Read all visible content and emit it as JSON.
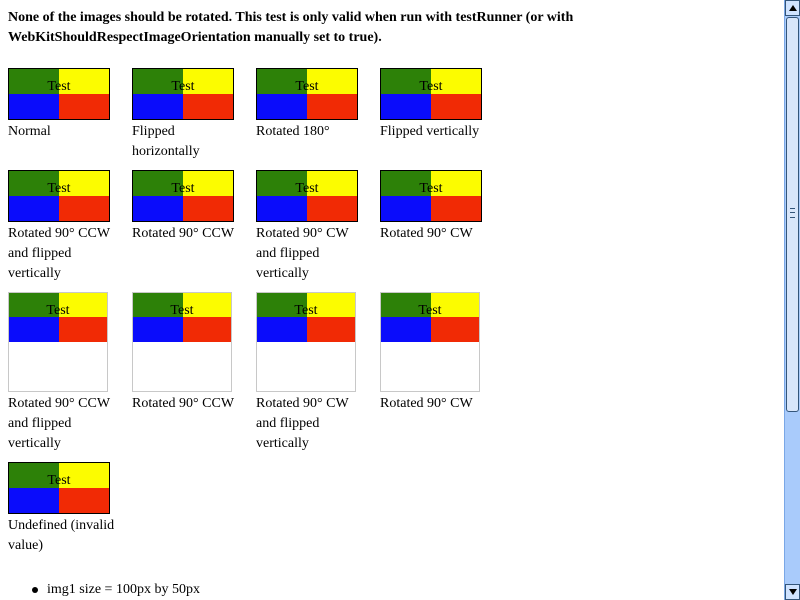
{
  "heading": "None of the images should be rotated. This test is only valid when run with testRunner (or with WebKitShouldRespectImageOrientation manually set to true).",
  "image_text": "Test",
  "colors": {
    "green": "#2d8108",
    "yellow": "#fcfc00",
    "blue": "#0a0cfb",
    "red": "#f12a05",
    "scrollbar_track": "#a9cbfb"
  },
  "rows": [
    {
      "captions": [
        "Normal",
        "Flipped horizontally",
        "Rotated 180°",
        "Flipped vertically"
      ]
    },
    {
      "captions": [
        "Rotated 90° CCW and flipped vertically",
        "Rotated 90° CCW",
        "Rotated 90° CW and flipped vertically",
        "Rotated 90° CW"
      ]
    },
    {
      "captions": [
        "Rotated 90° CCW and flipped vertically",
        "Rotated 90° CCW",
        "Rotated 90° CW and flipped vertically",
        "Rotated 90° CW"
      ]
    },
    {
      "captions": [
        "Undefined (invalid value)"
      ]
    }
  ],
  "results": [
    "img1 size = 100px by 50px"
  ]
}
